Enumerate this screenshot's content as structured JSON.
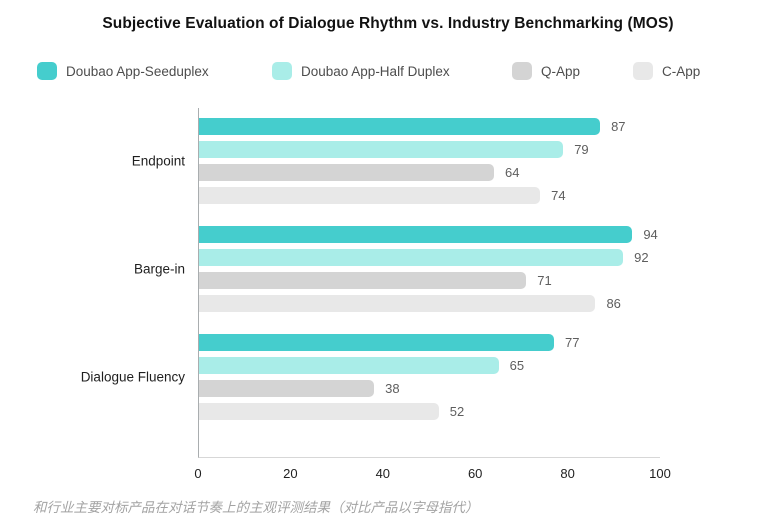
{
  "footer": "和行业主要对标产品在对话节奏上的主观评测结果（对比产品以字母指代）",
  "chart_data": {
    "type": "bar",
    "orientation": "horizontal",
    "title": "Subjective Evaluation of Dialogue Rhythm vs. Industry Benchmarking (MOS)",
    "categories": [
      "Endpoint",
      "Barge-in",
      "Dialogue Fluency"
    ],
    "series": [
      {
        "name": "Doubao App-Seeduplex",
        "color": "#45CDCD",
        "values": [
          87,
          94,
          77
        ]
      },
      {
        "name": "Doubao App-Half Duplex",
        "color": "#A9EDE8",
        "values": [
          79,
          92,
          65
        ]
      },
      {
        "name": "Q-App",
        "color": "#D4D4D4",
        "values": [
          64,
          71,
          38
        ]
      },
      {
        "name": "C-App",
        "color": "#E8E8E8",
        "values": [
          74,
          86,
          52
        ]
      }
    ],
    "xlim": [
      0,
      100
    ],
    "xticks": [
      0,
      20,
      40,
      60,
      80,
      100
    ],
    "value_labels": true,
    "legend_position": "top",
    "grid": false
  }
}
